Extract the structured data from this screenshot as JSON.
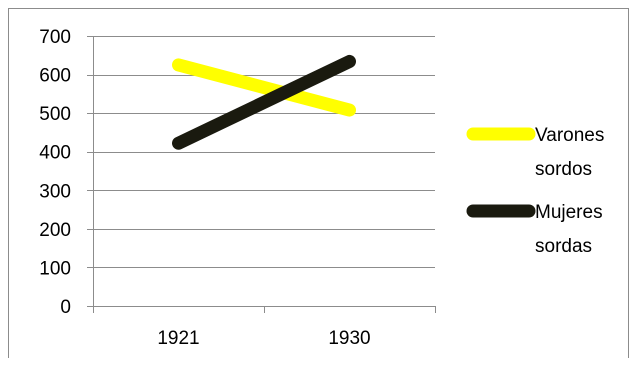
{
  "chart_data": {
    "type": "line",
    "title": "",
    "xlabel": "",
    "ylabel": "",
    "categories": [
      "1921",
      "1930"
    ],
    "ylim": [
      0,
      700
    ],
    "yticks": [
      0,
      100,
      200,
      300,
      400,
      500,
      600,
      700
    ],
    "grid": "horizontal",
    "legend_position": "right",
    "series": [
      {
        "name_lines": [
          "Varones",
          "sordos"
        ],
        "values": [
          625,
          508
        ],
        "color": "#ffff00"
      },
      {
        "name_lines": [
          "Mujeres",
          "sordas"
        ],
        "values": [
          422,
          634
        ],
        "color": "#1a1a0f"
      }
    ]
  }
}
